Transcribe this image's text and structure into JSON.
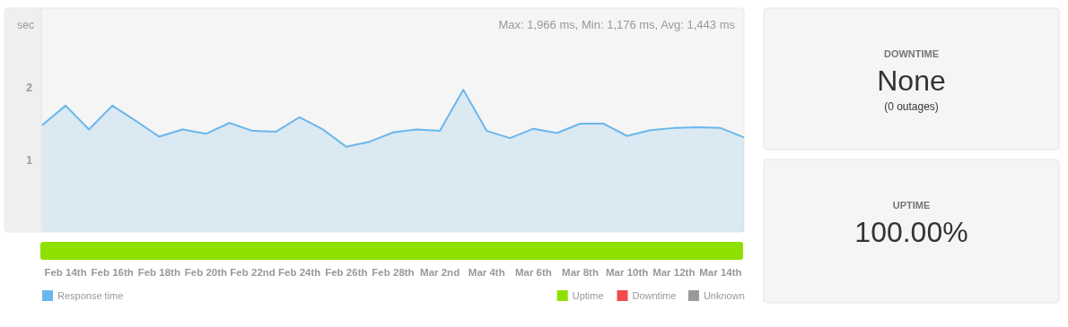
{
  "chart_data": [
    {
      "type": "area",
      "ylabel": "sec",
      "annotations": [
        "Max: 1,966 ms, Min: 1,176 ms, Avg: 1,443 ms"
      ],
      "categories": [
        null,
        "Feb 14th",
        null,
        "Feb 16th",
        null,
        "Feb 18th",
        null,
        "Feb 20th",
        null,
        "Feb 22nd",
        null,
        "Feb 24th",
        null,
        "Feb 26th",
        null,
        "Feb 28th",
        null,
        "Mar 2nd",
        null,
        "Mar 4th",
        null,
        "Mar 6th",
        null,
        "Mar 8th",
        null,
        "Mar 10th",
        null,
        "Mar 12th",
        null,
        "Mar 14th",
        null
      ],
      "series": [
        {
          "name": "Response time",
          "color": "#6ab7ec",
          "values": [
            1.48,
            1.75,
            1.42,
            1.75,
            1.54,
            1.32,
            1.42,
            1.36,
            1.51,
            1.4,
            1.39,
            1.59,
            1.42,
            1.18,
            1.25,
            1.38,
            1.42,
            1.4,
            1.97,
            1.4,
            1.3,
            1.43,
            1.37,
            1.5,
            1.5,
            1.33,
            1.41,
            1.44,
            1.45,
            1.44,
            1.31
          ]
        }
      ],
      "ylim": [
        0,
        3.1
      ],
      "yticks": [
        1,
        2
      ],
      "legend": "bottom left"
    },
    {
      "type": "other",
      "series": [
        {
          "name": "Uptime",
          "color": "#8ee000"
        },
        {
          "name": "Downtime",
          "color": "#f04c4c"
        },
        {
          "name": "Unknown",
          "color": "#999999"
        }
      ],
      "legend": "bottom right"
    },
    {
      "type": "other",
      "title": "DOWNTIME",
      "annotations": [
        "None",
        "(0 outages)"
      ]
    },
    {
      "type": "other",
      "title": "UPTIME",
      "annotations": [
        "100.00%"
      ]
    }
  ]
}
